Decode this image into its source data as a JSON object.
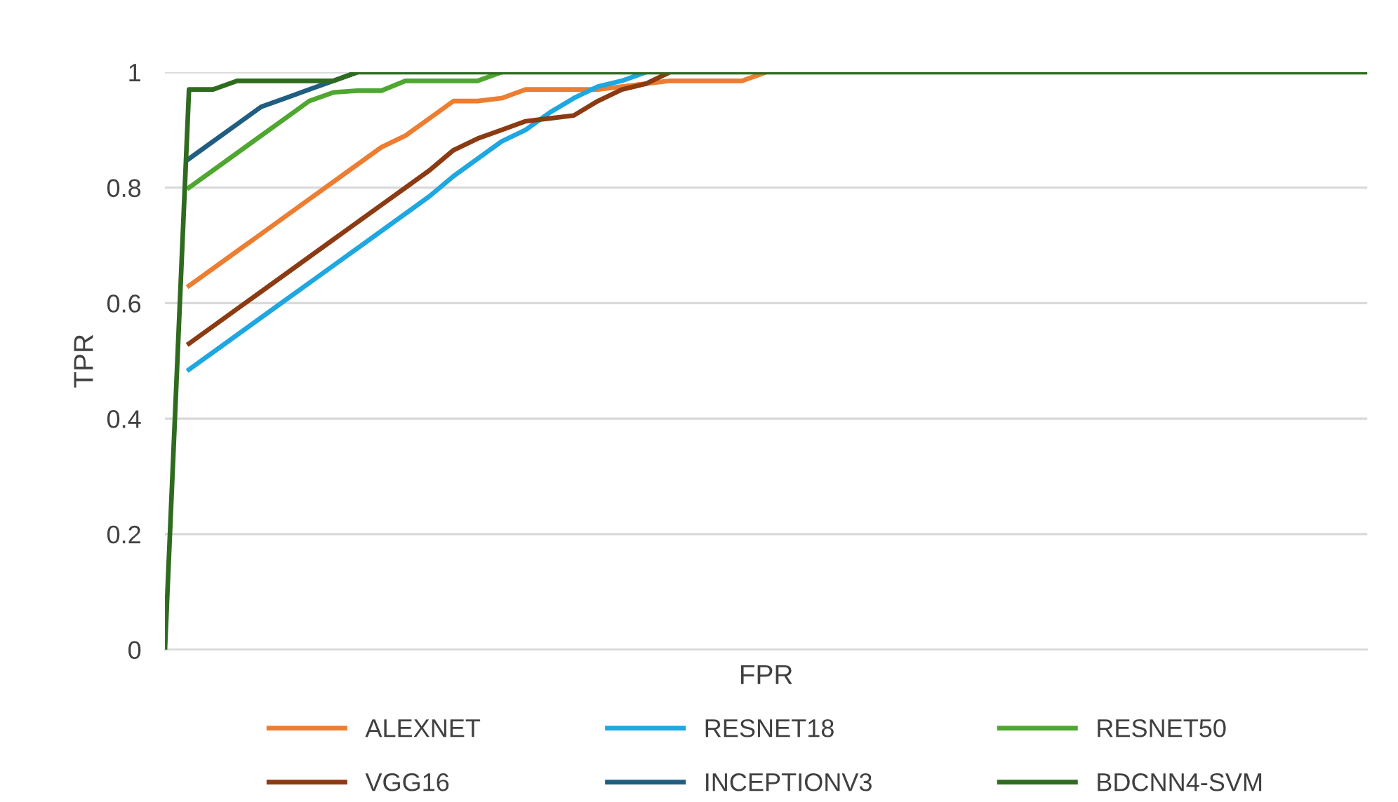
{
  "chart_data": {
    "type": "line",
    "xlabel": "FPR",
    "ylabel": "TPR",
    "categories": [
      null,
      null,
      null,
      null,
      null,
      null,
      null,
      null,
      null,
      null,
      null,
      null,
      null,
      null,
      null,
      null,
      null,
      null,
      null,
      null,
      null,
      null,
      null,
      null,
      null,
      null,
      null,
      null,
      null,
      null,
      null,
      null,
      null,
      null,
      null,
      null,
      null,
      null,
      null,
      null,
      null,
      null,
      null,
      null,
      null,
      null,
      null,
      null,
      null,
      null,
      null
    ],
    "ylim": [
      0,
      1
    ],
    "yticks": [
      0,
      {
        "value": 0.2,
        "label": "0.2"
      },
      {
        "value": 0.4,
        "label": "0.4"
      },
      {
        "value": 0.6,
        "label": "0.6"
      },
      {
        "value": 0.8,
        "label": "0.8"
      },
      1
    ],
    "grid": "y",
    "legend": "bottom",
    "marker": "none",
    "line_style": "solid",
    "series": [
      {
        "name": "ALEXNET",
        "color": "#ed7d31",
        "values": [
          null,
          0.63,
          0.66,
          0.69,
          0.72,
          0.75,
          0.78,
          0.81,
          0.84,
          0.87,
          0.89,
          0.92,
          0.95,
          0.95,
          0.955,
          0.97,
          0.97,
          0.97,
          0.97,
          0.975,
          0.98,
          0.985,
          0.985,
          0.985,
          0.985,
          1,
          null,
          null,
          null,
          null,
          null,
          null,
          null,
          null,
          null,
          null,
          null,
          null,
          null,
          null,
          null,
          null,
          null,
          null,
          null,
          null,
          null,
          null,
          null,
          null,
          null
        ]
      },
      {
        "name": "RESNET18",
        "color": "#1ea7e1",
        "values": [
          null,
          0.485,
          0.515,
          0.545,
          0.575,
          0.605,
          0.635,
          0.665,
          0.695,
          0.725,
          0.755,
          0.785,
          0.82,
          0.85,
          0.88,
          0.9,
          0.93,
          0.955,
          0.975,
          0.985,
          1,
          null,
          null,
          null,
          null,
          null,
          null,
          null,
          null,
          null,
          null,
          null,
          null,
          null,
          null,
          null,
          null,
          null,
          null,
          null,
          null,
          null,
          null,
          null,
          null,
          null,
          null,
          null,
          null,
          null,
          null
        ]
      },
      {
        "name": "RESNET50",
        "color": "#4ea72e",
        "values": [
          null,
          0.8,
          0.83,
          0.86,
          0.89,
          0.92,
          0.95,
          0.965,
          0.968,
          0.968,
          0.985,
          0.985,
          0.985,
          0.985,
          1,
          null,
          null,
          null,
          null,
          null,
          null,
          null,
          null,
          null,
          null,
          null,
          null,
          null,
          null,
          null,
          null,
          null,
          null,
          null,
          null,
          null,
          null,
          null,
          null,
          null,
          null,
          null,
          null,
          null,
          null,
          null,
          null,
          null,
          null,
          null,
          null
        ]
      },
      {
        "name": "VGG16",
        "color": "#8c3a12",
        "values": [
          null,
          0.53,
          0.56,
          0.59,
          0.62,
          0.65,
          0.68,
          0.71,
          0.74,
          0.77,
          0.8,
          0.83,
          0.865,
          0.885,
          0.9,
          0.915,
          0.92,
          0.925,
          0.95,
          0.97,
          0.98,
          1,
          null,
          null,
          null,
          null,
          null,
          null,
          null,
          null,
          null,
          null,
          null,
          null,
          null,
          null,
          null,
          null,
          null,
          null,
          null,
          null,
          null,
          null,
          null,
          null,
          null,
          null,
          null,
          null,
          null
        ]
      },
      {
        "name": "INCEPTIONV3",
        "color": "#1f5e80",
        "values": [
          null,
          0.85,
          0.88,
          0.91,
          0.94,
          0.955,
          0.97,
          0.985,
          1,
          null,
          null,
          null,
          null,
          null,
          null,
          null,
          null,
          null,
          null,
          null,
          null,
          null,
          null,
          null,
          null,
          null,
          null,
          null,
          null,
          null,
          null,
          null,
          null,
          null,
          null,
          null,
          null,
          null,
          null,
          null,
          null,
          null,
          null,
          null,
          null,
          null,
          null,
          null,
          null,
          null,
          null
        ]
      },
      {
        "name": "BDCNN4-SVM",
        "color": "#2e6b1f",
        "values": [
          0,
          0.97,
          0.97,
          0.985,
          0.985,
          0.985,
          0.985,
          0.985,
          1,
          1,
          1,
          1,
          1,
          1,
          1,
          1,
          1,
          1,
          1,
          1,
          1,
          1,
          1,
          1,
          1,
          1,
          1,
          1,
          1,
          1,
          1,
          1,
          1,
          1,
          1,
          1,
          1,
          1,
          1,
          1,
          1,
          1,
          1,
          1,
          1,
          1,
          1,
          1,
          1,
          1,
          1
        ]
      }
    ]
  }
}
